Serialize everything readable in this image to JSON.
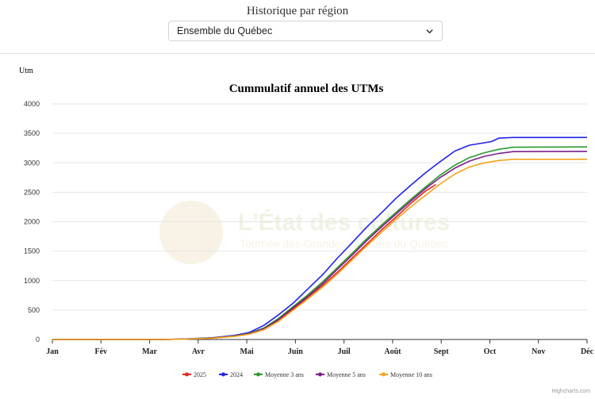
{
  "header": {
    "title": "Historique par région",
    "region_select": {
      "value": "Ensemble du Québec"
    }
  },
  "watermark": {
    "title": "L'État des cultures",
    "subtitle": "Tournée des Grandes Cultures du Québec"
  },
  "credit": "Highcharts.com",
  "colors": {
    "2025": "#e8261f",
    "2024": "#2222ee",
    "avg3": "#2a9a2a",
    "avg5": "#7a1f8c",
    "avg10": "#f5a31a"
  },
  "chart_data": {
    "type": "line",
    "title": "Cummulatif annuel des UTMs",
    "ylabel": "Utm",
    "ylim": [
      0,
      4000
    ],
    "yticks": [
      "0",
      "500",
      "1000",
      "1500",
      "2000",
      "2500",
      "3000",
      "3500",
      "4000"
    ],
    "x_categories": [
      "Jan",
      "Fév",
      "Mar",
      "Avr",
      "Mai",
      "Juin",
      "Juil",
      "Août",
      "Sept",
      "Oct",
      "Nov",
      "Déc"
    ],
    "x_unit": "day of year",
    "xlim": [
      1,
      365
    ],
    "grid": true,
    "legend_position": "bottom",
    "series": [
      {
        "name": "2025",
        "color": "#e8261f",
        "points": [
          [
            1,
            0
          ],
          [
            75,
            0
          ],
          [
            90,
            5
          ],
          [
            110,
            25
          ],
          [
            125,
            60
          ],
          [
            135,
            100
          ],
          [
            145,
            180
          ],
          [
            155,
            330
          ],
          [
            165,
            520
          ],
          [
            175,
            720
          ],
          [
            185,
            920
          ],
          [
            195,
            1140
          ],
          [
            205,
            1380
          ],
          [
            215,
            1620
          ],
          [
            225,
            1860
          ],
          [
            235,
            2080
          ],
          [
            245,
            2310
          ],
          [
            255,
            2520
          ],
          [
            262,
            2630
          ]
        ]
      },
      {
        "name": "2024",
        "color": "#2222ee",
        "points": [
          [
            1,
            0
          ],
          [
            75,
            0
          ],
          [
            90,
            8
          ],
          [
            110,
            30
          ],
          [
            125,
            70
          ],
          [
            135,
            120
          ],
          [
            145,
            240
          ],
          [
            155,
            420
          ],
          [
            165,
            620
          ],
          [
            175,
            860
          ],
          [
            185,
            1100
          ],
          [
            195,
            1380
          ],
          [
            205,
            1640
          ],
          [
            215,
            1910
          ],
          [
            225,
            2150
          ],
          [
            235,
            2400
          ],
          [
            245,
            2620
          ],
          [
            255,
            2830
          ],
          [
            265,
            3020
          ],
          [
            275,
            3200
          ],
          [
            285,
            3300
          ],
          [
            295,
            3340
          ],
          [
            300,
            3360
          ],
          [
            305,
            3420
          ],
          [
            315,
            3430
          ],
          [
            365,
            3430
          ]
        ]
      },
      {
        "name": "Moyenne 3 ans",
        "color": "#2a9a2a",
        "points": [
          [
            1,
            0
          ],
          [
            75,
            0
          ],
          [
            90,
            6
          ],
          [
            110,
            28
          ],
          [
            125,
            62
          ],
          [
            135,
            105
          ],
          [
            145,
            195
          ],
          [
            155,
            360
          ],
          [
            165,
            560
          ],
          [
            175,
            760
          ],
          [
            185,
            980
          ],
          [
            195,
            1220
          ],
          [
            205,
            1460
          ],
          [
            215,
            1710
          ],
          [
            225,
            1940
          ],
          [
            235,
            2160
          ],
          [
            245,
            2380
          ],
          [
            255,
            2590
          ],
          [
            265,
            2790
          ],
          [
            275,
            2960
          ],
          [
            285,
            3090
          ],
          [
            295,
            3170
          ],
          [
            305,
            3230
          ],
          [
            315,
            3265
          ],
          [
            365,
            3270
          ]
        ]
      },
      {
        "name": "Moyenne 5 ans",
        "color": "#7a1f8c",
        "points": [
          [
            1,
            0
          ],
          [
            75,
            0
          ],
          [
            90,
            5
          ],
          [
            110,
            26
          ],
          [
            125,
            60
          ],
          [
            135,
            100
          ],
          [
            145,
            185
          ],
          [
            155,
            340
          ],
          [
            165,
            540
          ],
          [
            175,
            735
          ],
          [
            185,
            950
          ],
          [
            195,
            1190
          ],
          [
            205,
            1430
          ],
          [
            215,
            1680
          ],
          [
            225,
            1910
          ],
          [
            235,
            2130
          ],
          [
            245,
            2350
          ],
          [
            255,
            2560
          ],
          [
            265,
            2750
          ],
          [
            275,
            2910
          ],
          [
            285,
            3030
          ],
          [
            295,
            3110
          ],
          [
            305,
            3160
          ],
          [
            315,
            3190
          ],
          [
            365,
            3195
          ]
        ]
      },
      {
        "name": "Moyenne 10 ans",
        "color": "#f5a31a",
        "points": [
          [
            1,
            0
          ],
          [
            75,
            0
          ],
          [
            90,
            4
          ],
          [
            110,
            22
          ],
          [
            125,
            52
          ],
          [
            135,
            90
          ],
          [
            145,
            165
          ],
          [
            155,
            310
          ],
          [
            165,
            500
          ],
          [
            175,
            690
          ],
          [
            185,
            890
          ],
          [
            195,
            1110
          ],
          [
            205,
            1350
          ],
          [
            215,
            1590
          ],
          [
            225,
            1820
          ],
          [
            235,
            2040
          ],
          [
            245,
            2250
          ],
          [
            255,
            2450
          ],
          [
            265,
            2640
          ],
          [
            275,
            2810
          ],
          [
            285,
            2930
          ],
          [
            295,
            3000
          ],
          [
            305,
            3040
          ],
          [
            315,
            3060
          ],
          [
            365,
            3060
          ]
        ]
      }
    ]
  }
}
